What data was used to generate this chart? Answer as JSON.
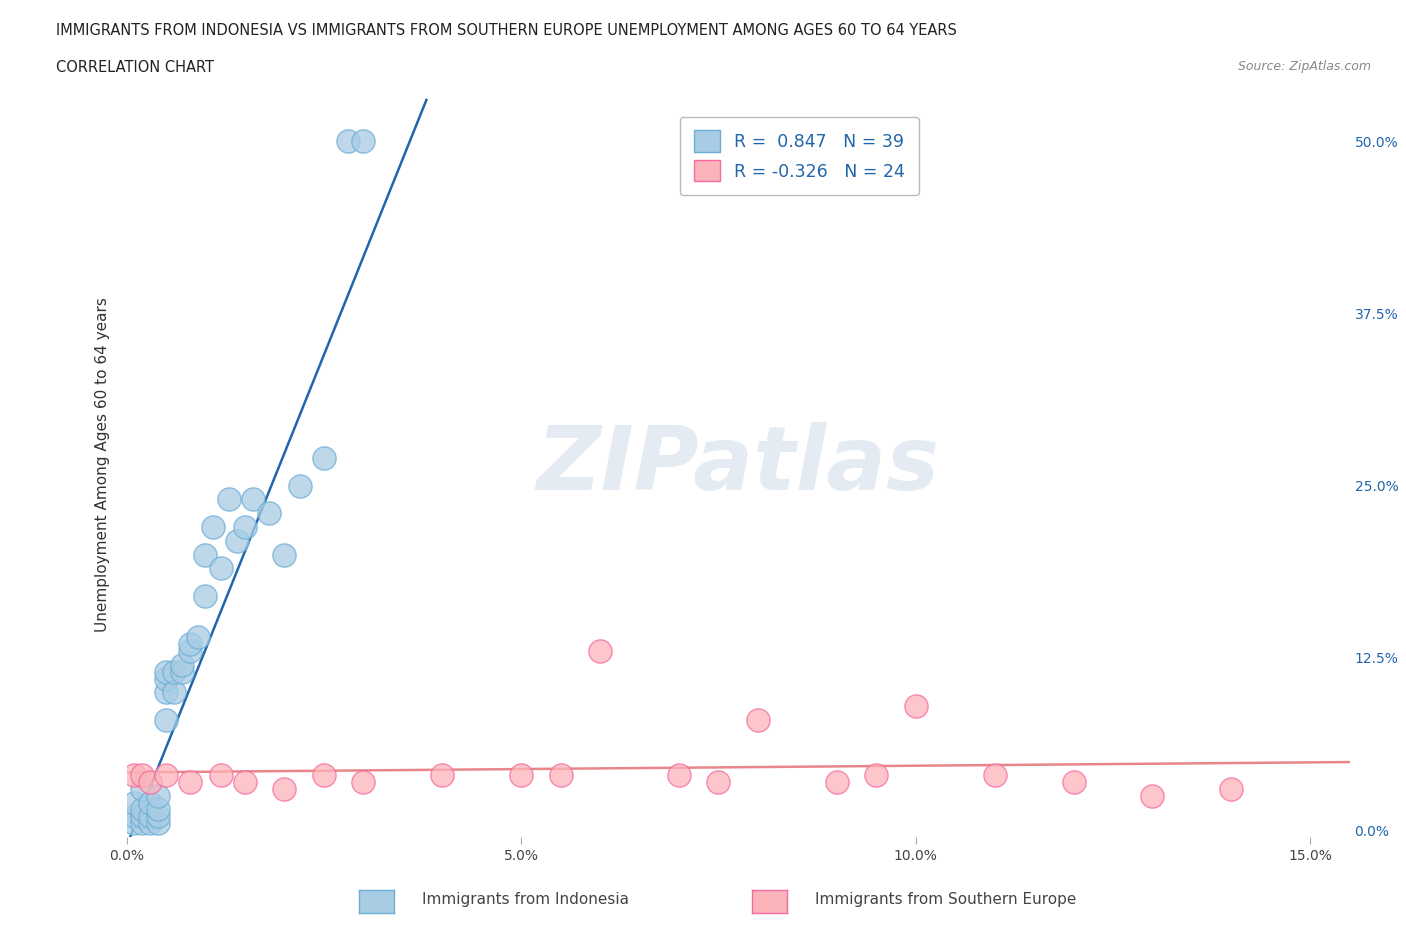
{
  "title_line1": "IMMIGRANTS FROM INDONESIA VS IMMIGRANTS FROM SOUTHERN EUROPE UNEMPLOYMENT AMONG AGES 60 TO 64 YEARS",
  "title_line2": "CORRELATION CHART",
  "source": "Source: ZipAtlas.com",
  "ylabel": "Unemployment Among Ages 60 to 64 years",
  "xlim": [
    0.0,
    0.155
  ],
  "ylim": [
    -0.005,
    0.535
  ],
  "xticks": [
    0.0,
    0.05,
    0.1,
    0.15
  ],
  "xtick_labels": [
    "0.0%",
    "5.0%",
    "10.0%",
    "15.0%"
  ],
  "ytick_labels": [
    "0.0%",
    "12.5%",
    "25.0%",
    "37.5%",
    "50.0%"
  ],
  "yticks": [
    0.0,
    0.125,
    0.25,
    0.375,
    0.5
  ],
  "indonesia_color": "#a8cce4",
  "indonesia_edge": "#6baed6",
  "s_europe_color": "#fbb4b9",
  "s_europe_edge": "#f768a1",
  "indonesia_R": 0.847,
  "indonesia_N": 39,
  "s_europe_R": -0.326,
  "s_europe_N": 24,
  "watermark_text": "ZIPatlas",
  "background_color": "#ffffff",
  "grid_color": "#cccccc",
  "indo_trend_color": "#2166ac",
  "se_trend_color": "#e8868a",
  "legend_indonesia_color": "#a8cce4",
  "legend_s_europe_color": "#fbb4b9",
  "indo_x": [
    0.001,
    0.001,
    0.001,
    0.002,
    0.002,
    0.002,
    0.002,
    0.003,
    0.003,
    0.003,
    0.004,
    0.004,
    0.004,
    0.004,
    0.005,
    0.005,
    0.005,
    0.005,
    0.006,
    0.006,
    0.007,
    0.007,
    0.008,
    0.008,
    0.009,
    0.01,
    0.01,
    0.011,
    0.012,
    0.013,
    0.014,
    0.015,
    0.016,
    0.018,
    0.02,
    0.022,
    0.025,
    0.028,
    0.03
  ],
  "indo_y": [
    0.005,
    0.01,
    0.02,
    0.005,
    0.01,
    0.015,
    0.03,
    0.005,
    0.01,
    0.02,
    0.005,
    0.01,
    0.015,
    0.025,
    0.08,
    0.1,
    0.11,
    0.115,
    0.1,
    0.115,
    0.115,
    0.12,
    0.13,
    0.135,
    0.14,
    0.17,
    0.2,
    0.22,
    0.19,
    0.24,
    0.21,
    0.22,
    0.24,
    0.23,
    0.2,
    0.25,
    0.27,
    0.5,
    0.5
  ],
  "se_x": [
    0.001,
    0.002,
    0.003,
    0.005,
    0.008,
    0.012,
    0.015,
    0.02,
    0.025,
    0.03,
    0.04,
    0.05,
    0.055,
    0.06,
    0.07,
    0.075,
    0.08,
    0.09,
    0.095,
    0.1,
    0.11,
    0.12,
    0.13,
    0.14
  ],
  "se_y": [
    0.04,
    0.04,
    0.035,
    0.04,
    0.035,
    0.04,
    0.035,
    0.03,
    0.04,
    0.035,
    0.04,
    0.04,
    0.04,
    0.13,
    0.04,
    0.035,
    0.08,
    0.035,
    0.04,
    0.09,
    0.04,
    0.035,
    0.025,
    0.03
  ]
}
